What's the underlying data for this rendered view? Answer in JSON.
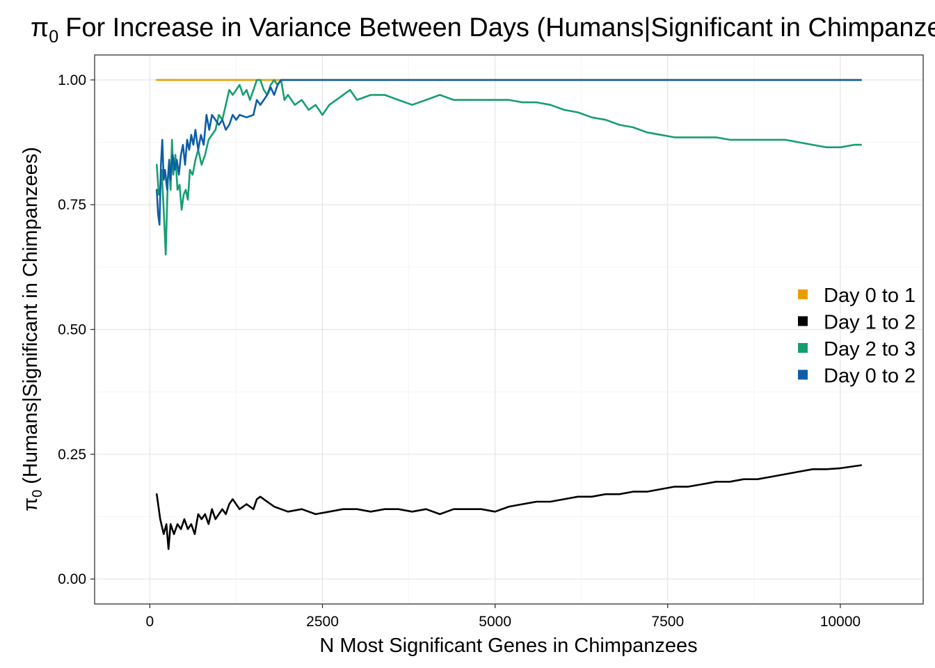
{
  "chart_data": {
    "type": "line",
    "title": "For Increase in Variance Between Days (Humans|Significant in Chimpanzees)",
    "title_symbol": "π",
    "title_symbol_sub": "0",
    "xlabel": "N Most Significant Genes in Chimpanzees",
    "ylabel": "(Humans|Significant in Chimpanzees)",
    "ylabel_symbol": "π",
    "ylabel_symbol_sub": "0",
    "xlim": [
      -800,
      11200
    ],
    "ylim": [
      -0.05,
      1.05
    ],
    "x_ticks": [
      0,
      2500,
      5000,
      7500,
      10000
    ],
    "x_tick_labels": [
      "0",
      "2500",
      "5000",
      "7500",
      "10000"
    ],
    "y_ticks": [
      0,
      0.25,
      0.5,
      0.75,
      1.0
    ],
    "y_tick_labels": [
      "0.00",
      "0.25",
      "0.50",
      "0.75",
      "1.00"
    ],
    "grid": true,
    "legend_position": "right",
    "series": [
      {
        "name": "Day 0 to 1",
        "color": "#E69F00",
        "points": [
          [
            100,
            1.0
          ],
          [
            10300,
            1.0
          ]
        ]
      },
      {
        "name": "Day 1 to 2",
        "color": "#000000",
        "points": [
          [
            100,
            0.17
          ],
          [
            150,
            0.12
          ],
          [
            200,
            0.09
          ],
          [
            240,
            0.11
          ],
          [
            270,
            0.06
          ],
          [
            300,
            0.11
          ],
          [
            350,
            0.09
          ],
          [
            400,
            0.11
          ],
          [
            450,
            0.1
          ],
          [
            500,
            0.12
          ],
          [
            550,
            0.1
          ],
          [
            600,
            0.11
          ],
          [
            650,
            0.09
          ],
          [
            700,
            0.13
          ],
          [
            750,
            0.12
          ],
          [
            800,
            0.13
          ],
          [
            850,
            0.11
          ],
          [
            900,
            0.14
          ],
          [
            950,
            0.12
          ],
          [
            1000,
            0.13
          ],
          [
            1050,
            0.14
          ],
          [
            1100,
            0.13
          ],
          [
            1150,
            0.15
          ],
          [
            1200,
            0.16
          ],
          [
            1300,
            0.14
          ],
          [
            1400,
            0.15
          ],
          [
            1500,
            0.14
          ],
          [
            1550,
            0.16
          ],
          [
            1600,
            0.165
          ],
          [
            1700,
            0.155
          ],
          [
            1800,
            0.145
          ],
          [
            1900,
            0.14
          ],
          [
            2000,
            0.135
          ],
          [
            2200,
            0.14
          ],
          [
            2400,
            0.13
          ],
          [
            2600,
            0.135
          ],
          [
            2800,
            0.14
          ],
          [
            3000,
            0.14
          ],
          [
            3200,
            0.135
          ],
          [
            3400,
            0.14
          ],
          [
            3600,
            0.14
          ],
          [
            3800,
            0.135
          ],
          [
            4000,
            0.14
          ],
          [
            4200,
            0.13
          ],
          [
            4400,
            0.14
          ],
          [
            4600,
            0.14
          ],
          [
            4800,
            0.14
          ],
          [
            5000,
            0.135
          ],
          [
            5200,
            0.145
          ],
          [
            5400,
            0.15
          ],
          [
            5600,
            0.155
          ],
          [
            5800,
            0.155
          ],
          [
            6000,
            0.16
          ],
          [
            6200,
            0.165
          ],
          [
            6400,
            0.165
          ],
          [
            6600,
            0.17
          ],
          [
            6800,
            0.17
          ],
          [
            7000,
            0.175
          ],
          [
            7200,
            0.175
          ],
          [
            7400,
            0.18
          ],
          [
            7600,
            0.185
          ],
          [
            7800,
            0.185
          ],
          [
            8000,
            0.19
          ],
          [
            8200,
            0.195
          ],
          [
            8400,
            0.195
          ],
          [
            8600,
            0.2
          ],
          [
            8800,
            0.2
          ],
          [
            9000,
            0.205
          ],
          [
            9200,
            0.21
          ],
          [
            9400,
            0.215
          ],
          [
            9600,
            0.22
          ],
          [
            9800,
            0.22
          ],
          [
            10000,
            0.222
          ],
          [
            10300,
            0.228
          ]
        ]
      },
      {
        "name": "Day 2 to 3",
        "color": "#159E6F",
        "points": [
          [
            100,
            0.83
          ],
          [
            130,
            0.77
          ],
          [
            150,
            0.78
          ],
          [
            170,
            0.82
          ],
          [
            200,
            0.74
          ],
          [
            230,
            0.65
          ],
          [
            260,
            0.8
          ],
          [
            280,
            0.83
          ],
          [
            300,
            0.78
          ],
          [
            320,
            0.88
          ],
          [
            340,
            0.81
          ],
          [
            370,
            0.85
          ],
          [
            400,
            0.78
          ],
          [
            430,
            0.79
          ],
          [
            460,
            0.74
          ],
          [
            490,
            0.77
          ],
          [
            520,
            0.78
          ],
          [
            550,
            0.76
          ],
          [
            580,
            0.82
          ],
          [
            620,
            0.81
          ],
          [
            660,
            0.84
          ],
          [
            700,
            0.86
          ],
          [
            750,
            0.83
          ],
          [
            800,
            0.85
          ],
          [
            850,
            0.88
          ],
          [
            900,
            0.89
          ],
          [
            950,
            0.9
          ],
          [
            1000,
            0.93
          ],
          [
            1050,
            0.92
          ],
          [
            1100,
            0.95
          ],
          [
            1150,
            0.98
          ],
          [
            1200,
            0.97
          ],
          [
            1250,
            0.98
          ],
          [
            1300,
            0.99
          ],
          [
            1350,
            0.97
          ],
          [
            1400,
            0.98
          ],
          [
            1450,
            0.96
          ],
          [
            1500,
            0.98
          ],
          [
            1550,
            1.0
          ],
          [
            1600,
            1.0
          ],
          [
            1650,
            0.98
          ],
          [
            1700,
            0.97
          ],
          [
            1750,
            0.99
          ],
          [
            1800,
            1.0
          ],
          [
            1850,
            0.99
          ],
          [
            1900,
            1.0
          ],
          [
            1950,
            0.96
          ],
          [
            2000,
            0.97
          ],
          [
            2100,
            0.95
          ],
          [
            2200,
            0.96
          ],
          [
            2300,
            0.94
          ],
          [
            2400,
            0.95
          ],
          [
            2500,
            0.93
          ],
          [
            2600,
            0.95
          ],
          [
            2700,
            0.96
          ],
          [
            2800,
            0.97
          ],
          [
            2900,
            0.98
          ],
          [
            3000,
            0.96
          ],
          [
            3200,
            0.97
          ],
          [
            3400,
            0.97
          ],
          [
            3600,
            0.96
          ],
          [
            3800,
            0.95
          ],
          [
            4000,
            0.96
          ],
          [
            4200,
            0.97
          ],
          [
            4400,
            0.96
          ],
          [
            4600,
            0.96
          ],
          [
            4800,
            0.96
          ],
          [
            5000,
            0.96
          ],
          [
            5200,
            0.96
          ],
          [
            5400,
            0.955
          ],
          [
            5600,
            0.955
          ],
          [
            5800,
            0.95
          ],
          [
            6000,
            0.94
          ],
          [
            6200,
            0.935
          ],
          [
            6400,
            0.925
          ],
          [
            6600,
            0.92
          ],
          [
            6800,
            0.91
          ],
          [
            7000,
            0.905
          ],
          [
            7200,
            0.895
          ],
          [
            7400,
            0.89
          ],
          [
            7600,
            0.885
          ],
          [
            7800,
            0.885
          ],
          [
            8000,
            0.885
          ],
          [
            8200,
            0.885
          ],
          [
            8400,
            0.88
          ],
          [
            8600,
            0.88
          ],
          [
            8800,
            0.88
          ],
          [
            9000,
            0.88
          ],
          [
            9200,
            0.88
          ],
          [
            9400,
            0.875
          ],
          [
            9600,
            0.87
          ],
          [
            9800,
            0.865
          ],
          [
            10000,
            0.865
          ],
          [
            10200,
            0.87
          ],
          [
            10300,
            0.87
          ]
        ]
      },
      {
        "name": "Day 0 to 2",
        "color": "#0D5DA6",
        "points": [
          [
            100,
            0.78
          ],
          [
            120,
            0.73
          ],
          [
            140,
            0.71
          ],
          [
            160,
            0.83
          ],
          [
            180,
            0.88
          ],
          [
            200,
            0.8
          ],
          [
            220,
            0.82
          ],
          [
            250,
            0.78
          ],
          [
            280,
            0.84
          ],
          [
            300,
            0.8
          ],
          [
            330,
            0.85
          ],
          [
            360,
            0.82
          ],
          [
            390,
            0.84
          ],
          [
            420,
            0.81
          ],
          [
            450,
            0.85
          ],
          [
            480,
            0.87
          ],
          [
            510,
            0.83
          ],
          [
            540,
            0.88
          ],
          [
            570,
            0.86
          ],
          [
            600,
            0.89
          ],
          [
            630,
            0.87
          ],
          [
            660,
            0.9
          ],
          [
            700,
            0.86
          ],
          [
            740,
            0.89
          ],
          [
            780,
            0.87
          ],
          [
            820,
            0.93
          ],
          [
            860,
            0.9
          ],
          [
            900,
            0.93
          ],
          [
            950,
            0.92
          ],
          [
            1000,
            0.91
          ],
          [
            1050,
            0.92
          ],
          [
            1100,
            0.9
          ],
          [
            1150,
            0.91
          ],
          [
            1200,
            0.93
          ],
          [
            1250,
            0.92
          ],
          [
            1300,
            0.93
          ],
          [
            1400,
            0.925
          ],
          [
            1500,
            0.93
          ],
          [
            1550,
            0.96
          ],
          [
            1600,
            0.95
          ],
          [
            1650,
            0.96
          ],
          [
            1700,
            0.97
          ],
          [
            1750,
            0.985
          ],
          [
            1800,
            0.97
          ],
          [
            1850,
            0.99
          ],
          [
            1900,
            1.0
          ],
          [
            2000,
            1.0
          ],
          [
            10300,
            1.0
          ]
        ]
      }
    ]
  }
}
